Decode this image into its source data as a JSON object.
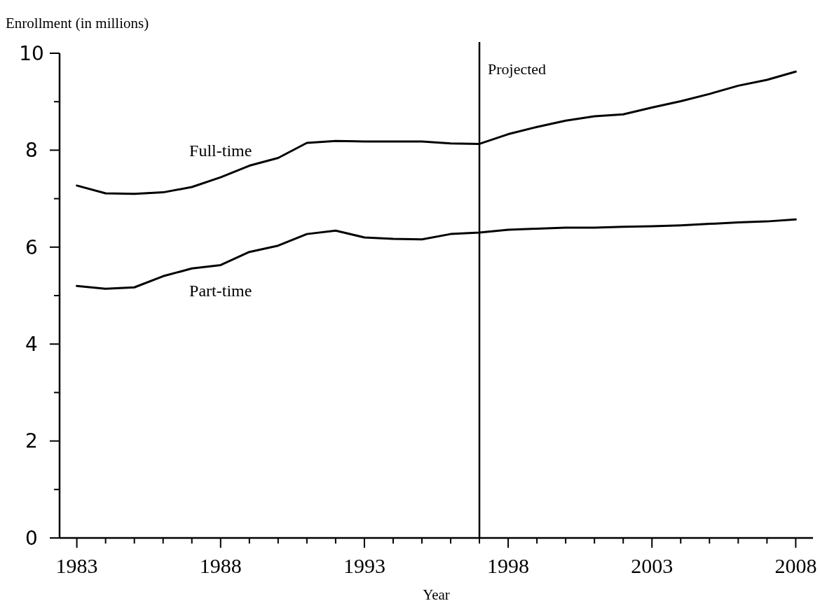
{
  "chart_data": {
    "type": "line",
    "ylabel": "Enrollment (in millions)",
    "xlabel": "Year",
    "x": [
      1983,
      1984,
      1985,
      1986,
      1987,
      1988,
      1989,
      1990,
      1991,
      1992,
      1993,
      1994,
      1995,
      1996,
      1997,
      1998,
      1999,
      2000,
      2001,
      2002,
      2003,
      2004,
      2005,
      2006,
      2007,
      2008
    ],
    "series": [
      {
        "name": "Full-time",
        "color": "#000000",
        "values": [
          7.27,
          7.11,
          7.1,
          7.13,
          7.24,
          7.44,
          7.68,
          7.84,
          8.15,
          8.19,
          8.18,
          8.18,
          8.18,
          8.14,
          8.13,
          8.33,
          8.48,
          8.61,
          8.7,
          8.74,
          8.88,
          9.01,
          9.16,
          9.33,
          9.45,
          9.62
        ]
      },
      {
        "name": "Part-time",
        "color": "#000000",
        "values": [
          5.2,
          5.14,
          5.17,
          5.4,
          5.56,
          5.63,
          5.9,
          6.03,
          6.27,
          6.34,
          6.2,
          6.17,
          6.16,
          6.27,
          6.3,
          6.36,
          6.38,
          6.4,
          6.4,
          6.42,
          6.43,
          6.45,
          6.48,
          6.51,
          6.53,
          6.57
        ]
      }
    ],
    "xlim": [
      1982.4,
      2008.6
    ],
    "ylim": [
      0,
      10
    ],
    "xticks": [
      1983,
      {
        "value": 1984,
        "label": null
      },
      {
        "value": 1985,
        "label": null
      },
      {
        "value": 1986,
        "label": null
      },
      {
        "value": 1987,
        "label": null
      },
      1988,
      {
        "value": 1989,
        "label": null
      },
      {
        "value": 1990,
        "label": null
      },
      {
        "value": 1991,
        "label": null
      },
      {
        "value": 1992,
        "label": null
      },
      1993,
      {
        "value": 1994,
        "label": null
      },
      {
        "value": 1995,
        "label": null
      },
      {
        "value": 1996,
        "label": null
      },
      {
        "value": 1997,
        "label": null
      },
      1998,
      {
        "value": 1999,
        "label": null
      },
      {
        "value": 2000,
        "label": null
      },
      {
        "value": 2001,
        "label": null
      },
      {
        "value": 2002,
        "label": null
      },
      2003,
      {
        "value": 2004,
        "label": null
      },
      {
        "value": 2005,
        "label": null
      },
      {
        "value": 2006,
        "label": null
      },
      {
        "value": 2007,
        "label": null
      },
      2008
    ],
    "yticks": [
      0,
      {
        "value": 1,
        "label": null
      },
      2,
      {
        "value": 3,
        "label": null
      },
      4,
      {
        "value": 5,
        "label": null
      },
      6,
      {
        "value": 7,
        "label": null
      },
      8,
      {
        "value": 9,
        "label": null
      },
      10
    ],
    "ref_lines": [
      {
        "axis": "x",
        "value": 1997,
        "label": "Projected",
        "color": "#000000"
      }
    ],
    "grid": false,
    "legend": false,
    "marker": "none",
    "line_style": "solid"
  }
}
